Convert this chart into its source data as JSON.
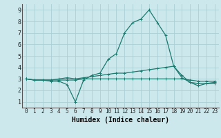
{
  "xlabel": "Humidex (Indice chaleur)",
  "bg_color": "#cce8ec",
  "grid_color": "#aacfd4",
  "line_color": "#1a7a6e",
  "xlim": [
    -0.5,
    23.5
  ],
  "ylim": [
    0.5,
    9.5
  ],
  "xticks": [
    0,
    1,
    2,
    3,
    4,
    5,
    6,
    7,
    8,
    9,
    10,
    11,
    12,
    13,
    14,
    15,
    16,
    17,
    18,
    19,
    20,
    21,
    22,
    23
  ],
  "yticks": [
    1,
    2,
    3,
    4,
    5,
    6,
    7,
    8,
    9
  ],
  "series": [
    [
      3.0,
      2.9,
      2.9,
      2.8,
      2.8,
      2.5,
      1.0,
      2.9,
      3.3,
      3.5,
      4.7,
      5.2,
      7.0,
      7.9,
      8.2,
      9.0,
      7.9,
      6.8,
      4.1,
      3.1,
      2.7,
      2.4,
      2.6,
      2.7
    ],
    [
      3.0,
      2.9,
      2.9,
      2.9,
      3.0,
      3.1,
      3.0,
      3.1,
      3.2,
      3.3,
      3.4,
      3.5,
      3.5,
      3.6,
      3.7,
      3.8,
      3.9,
      4.0,
      4.1,
      3.3,
      2.7,
      2.6,
      2.6,
      2.6
    ],
    [
      3.0,
      2.9,
      2.9,
      2.9,
      2.9,
      2.9,
      2.9,
      3.0,
      3.0,
      3.0,
      3.0,
      3.0,
      3.0,
      3.0,
      3.0,
      3.0,
      3.0,
      3.0,
      3.0,
      3.0,
      2.9,
      2.8,
      2.8,
      2.8
    ]
  ]
}
